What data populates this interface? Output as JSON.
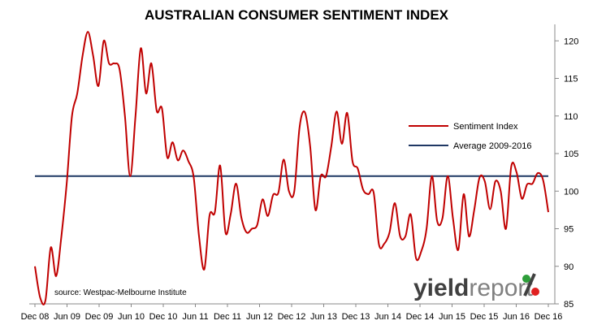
{
  "chart_data": {
    "type": "line",
    "title": "AUSTRALIAN CONSUMER SENTIMENT INDEX",
    "source": "source: Westpac-Melbourne Institute",
    "x_start": "Dec 08",
    "x_end": "Dec 16",
    "x_ticks": [
      "Dec 08",
      "Jun 09",
      "Dec 09",
      "Jun 10",
      "Dec 10",
      "Jun 11",
      "Dec 11",
      "Jun 12",
      "Dec 12",
      "Jun 13",
      "Dec 13",
      "Jun 14",
      "Dec 14",
      "Jun 15",
      "Dec 15",
      "Jun 16",
      "Dec 16"
    ],
    "y_ticks": [
      85,
      90,
      95,
      100,
      105,
      110,
      115,
      120
    ],
    "ylim": [
      85,
      122
    ],
    "y_axis_side": "right",
    "grid": false,
    "legend_position": "right",
    "series": [
      {
        "name": "Sentiment Index",
        "color": "#c00000",
        "values": [
          90.0,
          85.8,
          85.5,
          92.5,
          88.7,
          94.0,
          101.0,
          110.0,
          113.0,
          118.0,
          121.2,
          118.0,
          114.0,
          120.0,
          117.0,
          117.0,
          116.2,
          110.0,
          102.0,
          110.0,
          119.0,
          113.0,
          117.0,
          110.7,
          111.0,
          104.5,
          106.5,
          104.1,
          105.4,
          104.0,
          101.8,
          94.0,
          89.6,
          96.8,
          97.2,
          103.4,
          94.5,
          97.0,
          101.0,
          96.5,
          94.5,
          95.0,
          95.5,
          98.9,
          96.7,
          99.5,
          99.8,
          104.2,
          100.0,
          100.0,
          108.5,
          110.5,
          106.0,
          97.5,
          102.0,
          102.0,
          106.0,
          110.6,
          106.3,
          110.4,
          104.0,
          103.0,
          100.2,
          99.6,
          99.8,
          92.9,
          93.0,
          94.5,
          98.4,
          94.0,
          94.0,
          96.9,
          91.1,
          92.0,
          95.0,
          102.0,
          96.0,
          96.4,
          102.0,
          96.3,
          92.2,
          99.6,
          94.0,
          97.5,
          101.8,
          101.3,
          97.6,
          101.3,
          100.0,
          95.0,
          103.3,
          102.5,
          99.0,
          100.9,
          101.0,
          102.4,
          101.5,
          97.2
        ]
      },
      {
        "name": "Average 2009-2016",
        "color": "#1f3864",
        "values": [
          102.0,
          102.0
        ]
      }
    ]
  },
  "logo": {
    "part1": "yield",
    "part2": "report",
    "symbol": "%",
    "color_dark": "#404040",
    "color_light": "#808080",
    "accent_red": "#e02020",
    "accent_green": "#2e9e3a"
  }
}
